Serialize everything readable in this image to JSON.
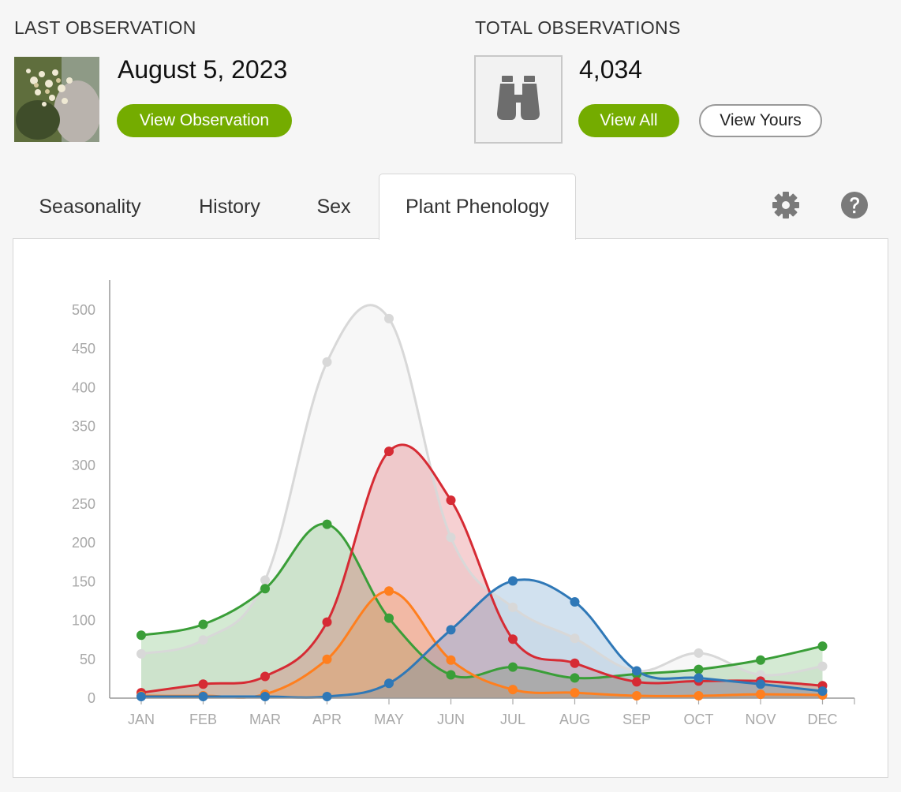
{
  "last_observation": {
    "label": "LAST OBSERVATION",
    "date": "August 5, 2023",
    "button_label": "View Observation"
  },
  "total_observations": {
    "label": "TOTAL OBSERVATIONS",
    "count": "4,034",
    "view_all_label": "View All",
    "view_yours_label": "View Yours",
    "icon": "binoculars-icon"
  },
  "tabs": [
    {
      "label": "Seasonality",
      "active": false
    },
    {
      "label": "History",
      "active": false
    },
    {
      "label": "Sex",
      "active": false
    },
    {
      "label": "Plant Phenology",
      "active": true
    }
  ],
  "toolbar_icons": [
    "gear-icon",
    "help-icon"
  ],
  "colors": {
    "accent_green": "#74ac00",
    "series_total": "#d8d8d8",
    "series_green": "#3a9e38",
    "series_red": "#d62b34",
    "series_orange": "#ff7f1e",
    "series_blue": "#2f78b7"
  },
  "chart_data": {
    "type": "area",
    "categories": [
      "JAN",
      "FEB",
      "MAR",
      "APR",
      "MAY",
      "JUN",
      "JUL",
      "AUG",
      "SEP",
      "OCT",
      "NOV",
      "DEC"
    ],
    "yticks": [
      0,
      50,
      100,
      150,
      200,
      250,
      300,
      350,
      400,
      450,
      500
    ],
    "ylim": [
      0,
      500
    ],
    "grid": false,
    "series": [
      {
        "color": "#d8d8d8",
        "values": [
          57,
          75,
          152,
          433,
          489,
          207,
          117,
          77,
          35,
          58,
          30,
          41
        ]
      },
      {
        "color": "#3a9e38",
        "values": [
          81,
          95,
          141,
          224,
          103,
          30,
          40,
          26,
          31,
          37,
          49,
          67
        ]
      },
      {
        "color": "#d62b34",
        "values": [
          7,
          18,
          28,
          98,
          318,
          255,
          76,
          45,
          21,
          22,
          22,
          16
        ]
      },
      {
        "color": "#ff7f1e",
        "values": [
          3,
          3,
          5,
          50,
          138,
          49,
          11,
          7,
          3,
          3,
          5,
          4
        ]
      },
      {
        "color": "#2f78b7",
        "values": [
          2,
          2,
          2,
          2,
          19,
          88,
          151,
          124,
          35,
          26,
          18,
          9
        ]
      }
    ]
  }
}
